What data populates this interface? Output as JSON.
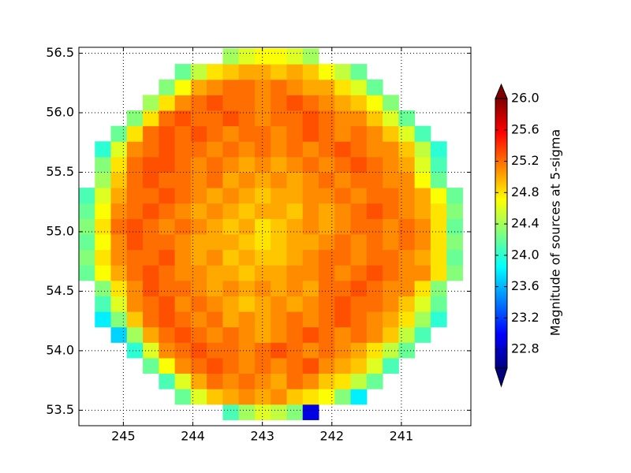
{
  "chart_data": {
    "type": "heatmap",
    "xbins": [
      245.64,
      245.41,
      245.18,
      244.95,
      244.72,
      244.49,
      244.26,
      244.03,
      243.8,
      243.57,
      243.34,
      243.11,
      242.88,
      242.65,
      242.42,
      242.19,
      241.96,
      241.73,
      241.5,
      241.27,
      241.04,
      240.81,
      240.58,
      240.35,
      240.12
    ],
    "ybins": [
      53.42,
      53.55,
      53.68,
      53.81,
      53.94,
      54.07,
      54.2,
      54.33,
      54.46,
      54.59,
      54.72,
      54.85,
      54.98,
      55.11,
      55.24,
      55.37,
      55.5,
      55.63,
      55.76,
      55.89,
      56.02,
      56.15,
      56.28,
      56.41,
      56.54
    ],
    "z": [
      [
        null,
        null,
        null,
        null,
        null,
        null,
        null,
        null,
        null,
        24.1,
        24.4,
        24.6,
        24.5,
        24.3,
        22.9,
        null,
        null,
        null,
        null,
        null,
        null,
        null,
        null,
        null
      ],
      [
        null,
        null,
        null,
        null,
        null,
        null,
        24.2,
        24.6,
        24.9,
        25.0,
        25.1,
        25.0,
        25.1,
        24.9,
        24.8,
        24.7,
        24.3,
        23.8,
        null,
        null,
        null,
        null,
        null,
        null
      ],
      [
        null,
        null,
        null,
        null,
        null,
        24.1,
        24.6,
        25.0,
        25.2,
        25.1,
        25.2,
        25.1,
        25.0,
        25.2,
        25.1,
        24.9,
        24.8,
        24.5,
        24.2,
        null,
        null,
        null,
        null,
        null
      ],
      [
        null,
        null,
        null,
        null,
        24.2,
        24.7,
        25.1,
        25.2,
        25.3,
        25.2,
        25.1,
        25.2,
        25.1,
        25.2,
        25.3,
        25.1,
        25.0,
        24.9,
        24.6,
        24.1,
        null,
        null,
        null,
        null
      ],
      [
        null,
        null,
        null,
        24.0,
        24.6,
        25.1,
        25.2,
        25.3,
        25.2,
        25.2,
        25.1,
        25.2,
        25.3,
        25.2,
        25.1,
        25.2,
        25.1,
        25.0,
        24.8,
        24.5,
        24.2,
        null,
        null,
        null
      ],
      [
        null,
        null,
        23.7,
        24.4,
        25.0,
        25.2,
        25.3,
        25.2,
        25.1,
        25.2,
        25.1,
        25.0,
        25.1,
        25.2,
        25.3,
        25.2,
        25.1,
        25.2,
        25.1,
        24.9,
        24.5,
        24.1,
        null,
        null
      ],
      [
        null,
        23.8,
        24.3,
        24.9,
        25.2,
        25.3,
        25.2,
        25.1,
        25.2,
        25.0,
        25.1,
        25.0,
        25.1,
        25.2,
        25.1,
        25.2,
        25.3,
        25.2,
        25.1,
        25.0,
        24.8,
        24.4,
        24.0,
        null
      ],
      [
        null,
        24.1,
        24.6,
        25.1,
        25.2,
        25.3,
        25.1,
        25.2,
        25.1,
        25.0,
        24.9,
        25.0,
        25.1,
        25.0,
        25.1,
        25.2,
        25.3,
        25.2,
        25.2,
        25.1,
        24.9,
        24.6,
        24.2,
        null
      ],
      [
        null,
        24.3,
        24.8,
        25.1,
        25.3,
        25.2,
        25.2,
        25.1,
        25.0,
        25.1,
        25.0,
        25.1,
        25.0,
        25.1,
        25.0,
        25.2,
        25.2,
        25.3,
        25.2,
        25.1,
        25.1,
        24.8,
        24.3,
        null
      ],
      [
        24.2,
        24.7,
        25.0,
        25.2,
        25.3,
        25.2,
        25.1,
        25.1,
        25.0,
        25.0,
        24.9,
        25.0,
        25.0,
        25.1,
        25.1,
        25.2,
        25.1,
        25.2,
        25.3,
        25.2,
        25.1,
        25.1,
        24.8,
        24.3
      ],
      [
        24.3,
        24.8,
        25.1,
        25.2,
        25.2,
        25.3,
        25.1,
        25.0,
        25.1,
        24.9,
        25.0,
        24.9,
        24.9,
        25.0,
        25.1,
        25.2,
        25.2,
        25.1,
        25.2,
        25.2,
        25.1,
        25.0,
        24.8,
        24.2
      ],
      [
        24.2,
        24.7,
        25.1,
        25.3,
        25.2,
        25.2,
        25.1,
        25.0,
        25.0,
        25.0,
        24.9,
        24.8,
        24.9,
        25.0,
        25.0,
        25.1,
        25.2,
        25.1,
        25.2,
        25.1,
        25.2,
        25.1,
        24.8,
        24.3
      ],
      [
        24.3,
        24.8,
        25.2,
        25.3,
        25.2,
        25.1,
        25.2,
        25.1,
        25.0,
        24.9,
        25.0,
        24.8,
        24.9,
        25.0,
        25.1,
        25.0,
        25.1,
        25.2,
        25.2,
        25.1,
        25.2,
        25.1,
        24.8,
        24.2
      ],
      [
        24.2,
        24.7,
        25.1,
        25.2,
        25.3,
        25.2,
        25.1,
        25.0,
        25.1,
        25.0,
        24.9,
        25.0,
        25.0,
        24.9,
        25.1,
        25.0,
        25.1,
        25.2,
        25.3,
        25.2,
        25.1,
        25.0,
        24.8,
        24.3
      ],
      [
        24.1,
        24.6,
        25.0,
        25.2,
        25.2,
        25.3,
        25.2,
        25.1,
        25.0,
        25.1,
        25.0,
        24.9,
        25.0,
        25.0,
        25.1,
        25.1,
        25.2,
        25.1,
        25.2,
        25.2,
        25.1,
        25.0,
        24.7,
        24.2
      ],
      [
        null,
        24.4,
        24.9,
        25.2,
        25.3,
        25.2,
        25.2,
        25.1,
        25.2,
        25.0,
        25.1,
        25.0,
        25.1,
        25.0,
        25.1,
        25.2,
        25.1,
        25.2,
        25.2,
        25.1,
        25.1,
        24.7,
        24.2,
        null
      ],
      [
        null,
        24.3,
        24.8,
        25.2,
        25.3,
        25.3,
        25.2,
        25.1,
        25.2,
        25.1,
        25.0,
        25.1,
        25.0,
        25.1,
        25.2,
        25.1,
        25.2,
        25.3,
        25.2,
        25.1,
        25.0,
        24.6,
        24.1,
        null
      ],
      [
        null,
        24.0,
        24.6,
        25.1,
        25.2,
        25.3,
        25.2,
        25.2,
        25.1,
        25.2,
        25.1,
        25.2,
        25.1,
        25.2,
        25.1,
        25.2,
        25.3,
        25.2,
        25.1,
        25.1,
        24.9,
        24.5,
        24.0,
        null
      ],
      [
        null,
        null,
        24.2,
        24.8,
        25.2,
        25.3,
        25.2,
        25.3,
        25.2,
        25.1,
        25.2,
        25.2,
        25.1,
        25.2,
        25.3,
        25.2,
        25.1,
        25.2,
        25.1,
        24.9,
        24.6,
        24.1,
        null,
        null
      ],
      [
        null,
        null,
        null,
        24.3,
        24.8,
        25.2,
        25.3,
        25.2,
        25.2,
        25.3,
        25.2,
        25.1,
        25.2,
        25.2,
        25.3,
        25.2,
        25.1,
        25.1,
        24.9,
        24.6,
        24.2,
        null,
        null,
        null
      ],
      [
        null,
        null,
        null,
        null,
        24.4,
        24.8,
        25.1,
        25.2,
        25.3,
        25.2,
        25.2,
        25.1,
        25.2,
        25.3,
        25.2,
        25.1,
        25.0,
        24.9,
        24.7,
        24.3,
        null,
        null,
        null,
        null
      ],
      [
        null,
        null,
        null,
        null,
        null,
        24.3,
        24.7,
        25.0,
        25.1,
        25.2,
        25.2,
        25.1,
        25.2,
        25.1,
        25.0,
        25.0,
        24.8,
        24.6,
        24.2,
        null,
        null,
        null,
        null,
        null
      ],
      [
        null,
        null,
        null,
        null,
        null,
        null,
        24.2,
        24.5,
        24.8,
        24.9,
        25.0,
        25.0,
        24.9,
        25.0,
        24.9,
        24.7,
        24.5,
        24.2,
        null,
        null,
        null,
        null,
        null,
        null
      ],
      [
        null,
        null,
        null,
        null,
        null,
        null,
        null,
        null,
        null,
        24.4,
        24.6,
        24.7,
        24.7,
        24.6,
        24.4,
        null,
        null,
        null,
        null,
        null,
        null,
        null,
        null,
        null
      ]
    ],
    "xlim": [
      245.64,
      240.0
    ],
    "ylim": [
      53.37,
      56.55
    ],
    "xticks": [
      245,
      244,
      243,
      242,
      241
    ],
    "yticks": [
      53.5,
      {
        "value": 54.0,
        "label": "54.0"
      },
      54.5,
      {
        "value": 55.0,
        "label": "55.0"
      },
      55.5,
      {
        "value": 56.0,
        "label": "56.0"
      },
      56.5
    ],
    "grid": true,
    "colormap": "jet",
    "clim": [
      22.56,
      26.0
    ],
    "colorbar_ticks": [
      22.8,
      23.2,
      23.6,
      {
        "value": 24.0,
        "label": "24.0"
      },
      24.4,
      24.8,
      25.2,
      25.6,
      {
        "value": 26.0,
        "label": "26.0"
      }
    ],
    "colorbar_label": "Magnitude of sources at 5-sigma"
  }
}
